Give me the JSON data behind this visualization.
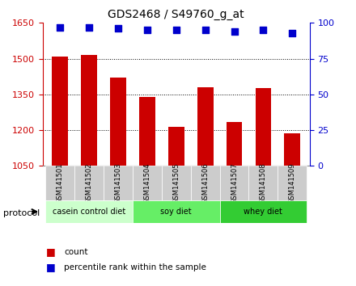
{
  "title": "GDS2468 / S49760_g_at",
  "categories": [
    "GSM141501",
    "GSM141502",
    "GSM141503",
    "GSM141504",
    "GSM141505",
    "GSM141506",
    "GSM141507",
    "GSM141508",
    "GSM141509"
  ],
  "bar_values": [
    1510,
    1515,
    1420,
    1340,
    1215,
    1380,
    1235,
    1375,
    1185
  ],
  "percentile_values": [
    97,
    97,
    96,
    95,
    95,
    95,
    94,
    95,
    93
  ],
  "ylim_left": [
    1050,
    1650
  ],
  "ylim_right": [
    0,
    100
  ],
  "yticks_left": [
    1050,
    1200,
    1350,
    1500,
    1650
  ],
  "yticks_right": [
    0,
    25,
    50,
    75,
    100
  ],
  "bar_color": "#cc0000",
  "dot_color": "#0000cc",
  "grid_color": "#000000",
  "bg_color": "#ffffff",
  "tick_bg_color": "#cccccc",
  "protocol_groups": [
    {
      "label": "casein control diet",
      "start": 0,
      "end": 3,
      "color": "#ccffcc"
    },
    {
      "label": "soy diet",
      "start": 3,
      "end": 6,
      "color": "#66ee66"
    },
    {
      "label": "whey diet",
      "start": 6,
      "end": 9,
      "color": "#33cc33"
    }
  ],
  "protocol_label": "protocol",
  "legend_items": [
    {
      "label": "count",
      "color": "#cc0000",
      "marker": "s"
    },
    {
      "label": "percentile rank within the sample",
      "color": "#0000cc",
      "marker": "s"
    }
  ]
}
